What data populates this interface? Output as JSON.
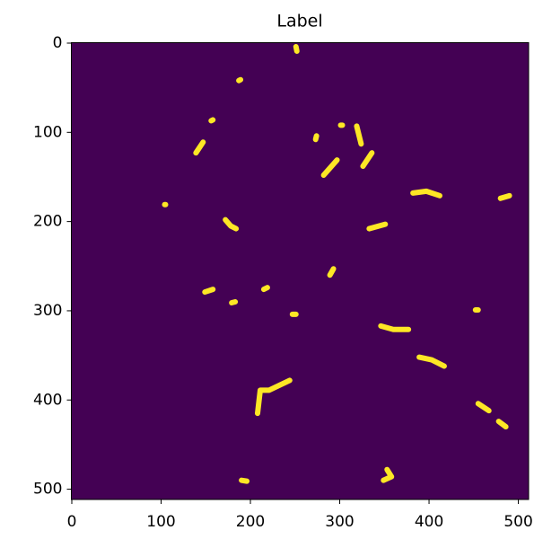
{
  "chart_data": {
    "type": "image",
    "title": "Label",
    "xlim": [
      -0.5,
      511.5
    ],
    "ylim": [
      511.5,
      -0.5
    ],
    "xticks": [
      0,
      100,
      200,
      300,
      400,
      500
    ],
    "yticks": [
      0,
      100,
      200,
      300,
      400,
      500
    ],
    "background_color": "#440154",
    "color": "#fde725",
    "shapes": [
      {
        "x": [
          139,
          147
        ],
        "y": [
          123,
          111
        ]
      },
      {
        "x": [
          273,
          274
        ],
        "y": [
          108,
          104
        ]
      },
      {
        "x": [
          282,
          297
        ],
        "y": [
          148,
          131
        ]
      },
      {
        "x": [
          324,
          319
        ],
        "y": [
          113,
          93
        ]
      },
      {
        "x": [
          326,
          336
        ],
        "y": [
          138,
          123
        ]
      },
      {
        "x": [
          382,
          397,
          412
        ],
        "y": [
          168,
          166,
          171
        ]
      },
      {
        "x": [
          172,
          178,
          184
        ],
        "y": [
          198,
          205,
          208
        ]
      },
      {
        "x": [
          333,
          351
        ],
        "y": [
          208,
          203
        ]
      },
      {
        "x": [
          149,
          158
        ],
        "y": [
          279,
          276
        ]
      },
      {
        "x": [
          179,
          183
        ],
        "y": [
          291,
          290
        ]
      },
      {
        "x": [
          215,
          219
        ],
        "y": [
          276,
          274
        ]
      },
      {
        "x": [
          247,
          251
        ],
        "y": [
          304,
          304
        ]
      },
      {
        "x": [
          289,
          293
        ],
        "y": [
          260,
          253
        ]
      },
      {
        "x": [
          346,
          360,
          377
        ],
        "y": [
          317,
          321,
          321
        ]
      },
      {
        "x": [
          208,
          211,
          221,
          244
        ],
        "y": [
          415,
          389,
          389,
          378
        ]
      },
      {
        "x": [
          349,
          358,
          353
        ],
        "y": [
          490,
          486,
          478
        ]
      },
      {
        "x": [
          389,
          403,
          417
        ],
        "y": [
          352,
          355,
          362
        ]
      },
      {
        "x": [
          452,
          455
        ],
        "y": [
          299,
          299
        ]
      },
      {
        "x": [
          455,
          467
        ],
        "y": [
          404,
          412
        ]
      },
      {
        "x": [
          251,
          252
        ],
        "y": [
          4,
          9
        ]
      },
      {
        "x": [
          187,
          189
        ],
        "y": [
          42,
          41
        ]
      },
      {
        "x": [
          156,
          158
        ],
        "y": [
          87,
          86
        ]
      },
      {
        "x": [
          301,
          303
        ],
        "y": [
          92,
          92
        ]
      },
      {
        "x": [
          104,
          105
        ],
        "y": [
          181,
          181
        ]
      },
      {
        "x": [
          480,
          490
        ],
        "y": [
          174,
          171
        ]
      },
      {
        "x": [
          478,
          486
        ],
        "y": [
          424,
          430
        ]
      },
      {
        "x": [
          190,
          196
        ],
        "y": [
          490,
          491
        ]
      }
    ]
  }
}
